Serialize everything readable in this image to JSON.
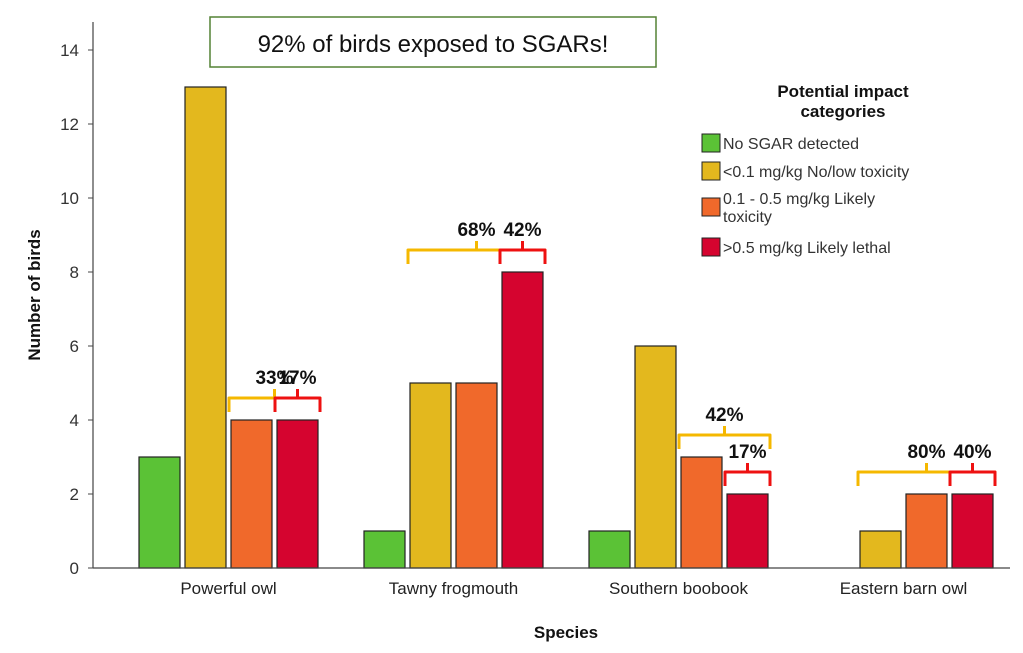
{
  "chart_data": {
    "type": "bar",
    "title": "",
    "callout": "92% of birds exposed to SGARs!",
    "xlabel": "Species",
    "ylabel": "Number of birds",
    "ylim": [
      0,
      14
    ],
    "yticks": [
      "0",
      "2",
      "4",
      "6",
      "8",
      "10",
      "12",
      "14"
    ],
    "categories": [
      "Powerful owl",
      "Tawny frogmouth",
      "Southern boobook",
      "Eastern barn owl"
    ],
    "series": [
      {
        "name": "No SGAR detected",
        "color": "#5bc236",
        "values": [
          3,
          1,
          1,
          0
        ]
      },
      {
        "name": "<0.1 mg/kg No/low toxicity",
        "color": "#e3b81e",
        "values": [
          13,
          5,
          6,
          1
        ]
      },
      {
        "name": "0.1 - 0.5 mg/kg Likely toxicity",
        "color": "#f0692b",
        "values": [
          4,
          5,
          3,
          2
        ]
      },
      {
        "name": ">0.5 mg/kg Likely lethal",
        "color": "#d5042f",
        "values": [
          4,
          8,
          2,
          2
        ]
      }
    ],
    "legend": {
      "title_line1": "Potential impact",
      "title_line2": "categories",
      "placement": "top-right"
    },
    "annotations": [
      {
        "label": "33%",
        "category": 0,
        "from_series": 2,
        "to_series": 3,
        "color": "#f5b800"
      },
      {
        "label": "17%",
        "category": 0,
        "from_series": 3,
        "to_series": 3,
        "color": "#ee1111"
      },
      {
        "label": "68%",
        "category": 1,
        "from_series": 1,
        "to_series": 3,
        "color": "#f5b800"
      },
      {
        "label": "42%",
        "category": 1,
        "from_series": 3,
        "to_series": 3,
        "color": "#ee1111"
      },
      {
        "label": "42%",
        "category": 2,
        "from_series": 2,
        "to_series": 3,
        "color": "#f5b800"
      },
      {
        "label": "17%",
        "category": 2,
        "from_series": 3,
        "to_series": 3,
        "color": "#ee1111"
      },
      {
        "label": "80%",
        "category": 3,
        "from_series": 1,
        "to_series": 3,
        "color": "#f5b800"
      },
      {
        "label": "40%",
        "category": 3,
        "from_series": 3,
        "to_series": 3,
        "color": "#ee1111"
      }
    ]
  }
}
